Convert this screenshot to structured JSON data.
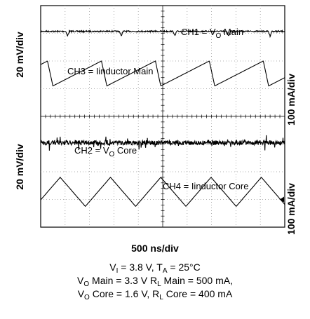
{
  "chart_data": {
    "type": "line",
    "title": "",
    "xlabel": "500 ns/div",
    "x_divisions": 10,
    "y_divisions": 8,
    "grid": true,
    "left_labels": [
      "20 mV/div",
      "20 mV/div"
    ],
    "right_labels": [
      "100 mA/div",
      "100 mA/div"
    ],
    "series": [
      {
        "name": "CH1",
        "label_main": "CH1 = V",
        "label_sub": "O",
        "label_rest": " Main",
        "shape": "ripple",
        "level_div": 0.93,
        "amplitude_div": 0.05,
        "spike_positions_div": [
          1.1,
          3.3,
          5.5,
          7.7,
          9.4
        ]
      },
      {
        "name": "CH3",
        "label_main": "CH3 = Iinductor Main",
        "label_sub": "",
        "label_rest": "",
        "shape": "sawtooth",
        "period_div": 2.21,
        "first_peak_div": 0.28,
        "peak_level_div": 2.0,
        "trough_level_div": 2.9
      },
      {
        "name": "CH2",
        "label_main": "CH2 = V",
        "label_sub": "O",
        "label_rest": " Core",
        "shape": "noise",
        "level_div": 4.95,
        "amplitude_div": 0.12
      },
      {
        "name": "CH4",
        "label_main": "CH4 = Iinductor Core",
        "label_sub": "",
        "label_rest": "",
        "shape": "triangle",
        "period_div": 2.06,
        "first_peak_div": 0.8,
        "peak_level_div": 6.2,
        "trough_level_div": 7.25
      }
    ]
  },
  "conditions": {
    "line1": {
      "a": "V",
      "a_sub": "I",
      "b": " = 3.8 V, T",
      "b_sub": "A",
      "c": " = 25°C"
    },
    "line2": {
      "a": "V",
      "a_sub": "O",
      "b": " Main =  3.3 V R",
      "b_sub": "L",
      "c": " Main = 500 mA,"
    },
    "line3": {
      "a": "V",
      "a_sub": "O",
      "b": " Core = 1.6 V, R",
      "b_sub": "L",
      "c": " Core = 400 mA"
    }
  }
}
